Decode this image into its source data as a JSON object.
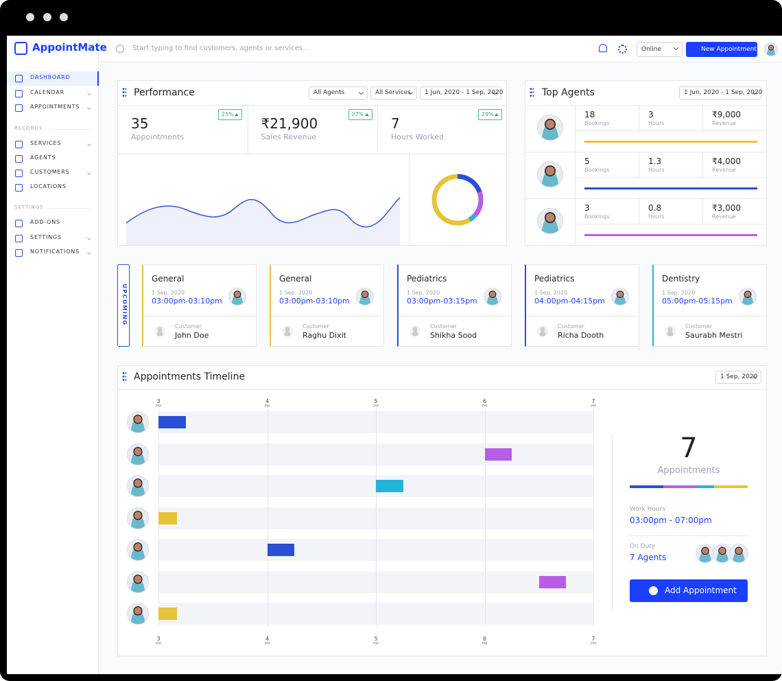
{
  "brand": "AppointMate",
  "search_placeholder": "Start typing to find customers, agents or services...",
  "status": "Online",
  "new_button": "New Appointment",
  "sidebar": {
    "main": [
      "DASHBOARD",
      "CALENDAR",
      "APPOINTMENTS"
    ],
    "groups": [
      {
        "title": "RECORDS",
        "items": [
          "SERVICES",
          "AGENTS",
          "CUSTOMERS",
          "LOCATIONS"
        ]
      },
      {
        "title": "SETTINGS",
        "items": [
          "ADD-ONS",
          "SETTINGS",
          "NOTIFICATIONS"
        ]
      }
    ]
  },
  "performance": {
    "title": "Performance",
    "filters": [
      "All Agents",
      "All Services",
      "1 Jun, 2020 - 1 Sep, 2020"
    ],
    "stats": [
      {
        "value": "35",
        "label": "Appointments",
        "change": "25%"
      },
      {
        "value": "₹21,900",
        "label": "Sales Revenue",
        "change": "27%"
      },
      {
        "value": "7",
        "label": "Hours Worked",
        "change": "29%"
      }
    ]
  },
  "top_agents": {
    "title": "Top Agents",
    "filter": "1 Jun, 2020 - 1 Sep, 2020",
    "labels": [
      "Bookings",
      "Hours",
      "Revenue"
    ],
    "agents": [
      {
        "bookings": "18",
        "hours": "3",
        "revenue": "₹9,000",
        "color": "#e6c338"
      },
      {
        "bookings": "5",
        "hours": "1.3",
        "revenue": "₹4,000",
        "color": "#2a4fd6"
      },
      {
        "bookings": "3",
        "hours": "0.8",
        "revenue": "₹3,000",
        "color": "#b65ee8"
      }
    ]
  },
  "upcoming": {
    "label": "UPCOMING",
    "customer_label": "Customer",
    "cards": [
      {
        "service": "General",
        "date": "1 Sep, 2020",
        "time": "03:00pm-03:10pm",
        "customer": "John Doe",
        "color": "#e6c338"
      },
      {
        "service": "General",
        "date": "1 Sep, 2020",
        "time": "03:00pm-03:10pm",
        "customer": "Raghu Dixit",
        "color": "#e6c338"
      },
      {
        "service": "Pediatrics",
        "date": "1 Sep, 2020",
        "time": "03:00pm-03:15pm",
        "customer": "Shikha Sood",
        "color": "#2a4fd6"
      },
      {
        "service": "Pediatrics",
        "date": "1 Sep, 2020",
        "time": "04:00pm-04:15pm",
        "customer": "Richa Dooth",
        "color": "#2a4fd6"
      },
      {
        "service": "Dentistry",
        "date": "1 Sep, 2020",
        "time": "05:00pm-05:15pm",
        "customer": "Saurabh Mestri",
        "color": "#21b5d9"
      }
    ]
  },
  "timeline": {
    "title": "Appointments Timeline",
    "filter": "1 Sep, 2020",
    "xlim": [
      3,
      7
    ],
    "ticks": [
      3,
      4,
      5,
      6,
      7
    ],
    "tick_suffix": "PM",
    "bars": [
      {
        "start": 3,
        "end": 3.25,
        "color": "#2a4fd6"
      },
      {
        "start": 6,
        "end": 6.25,
        "color": "#b65ee8"
      },
      {
        "start": 5,
        "end": 5.25,
        "color": "#21b5d9"
      },
      {
        "start": 3,
        "end": 3.17,
        "color": "#e6c338"
      },
      {
        "start": 4,
        "end": 4.25,
        "color": "#2a4fd6"
      },
      {
        "start": 6.5,
        "end": 6.75,
        "color": "#b65ee8"
      },
      {
        "start": 3,
        "end": 3.17,
        "color": "#e6c338"
      }
    ]
  },
  "summary": {
    "count": "7",
    "count_label": "Appointments",
    "work_hours_label": "Work Hours",
    "work_hours": "03:00pm - 07:00pm",
    "on_duty_label": "On Duty",
    "on_duty": "7 Agents",
    "button": "Add Appointment"
  }
}
